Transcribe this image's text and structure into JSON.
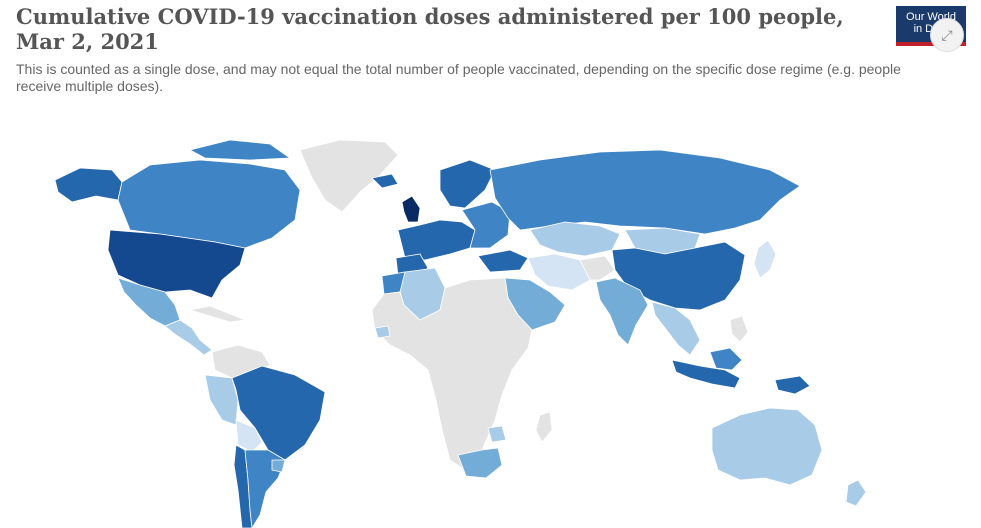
{
  "header": {
    "title": "Cumulative COVID-19 vaccination doses administered per 100 people, Mar 2, 2021",
    "subtitle": "This is counted as a single dose, and may not equal the total number of people vaccinated, depending on the specific dose regime (e.g. people receive multiple doses)."
  },
  "logo": {
    "line1": "Our World",
    "line2": "in Data"
  },
  "controls": {
    "expand_icon": "expand-arrows-icon"
  },
  "colors": {
    "no_data": "#e3e3e3",
    "very_low": "#d4e4f4",
    "low": "#a8cbe8",
    "medium_low": "#74acd8",
    "medium": "#3f84c4",
    "high": "#2467ad",
    "very_high": "#14498f",
    "highest": "#0a2a63"
  }
}
